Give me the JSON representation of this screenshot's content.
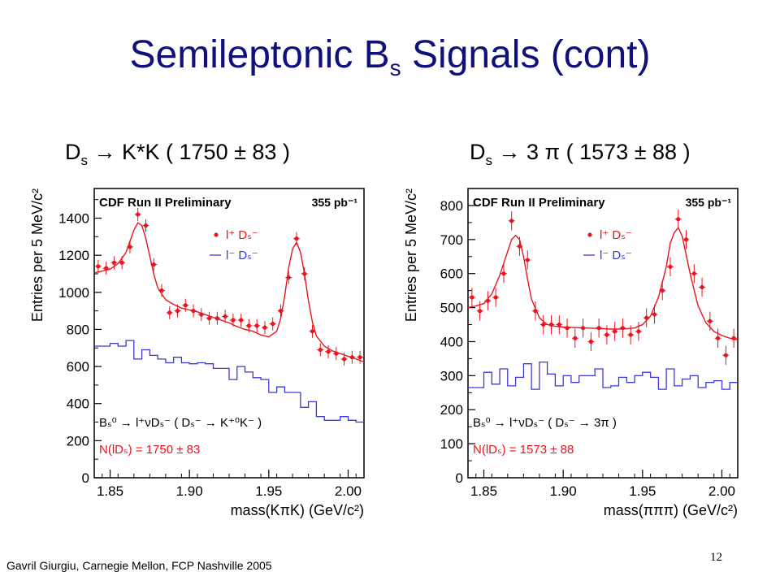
{
  "slide": {
    "title_main": "Semileptonic B",
    "title_sub": "s",
    "title_rest": " Signals (cont)",
    "footer": "Gavril Giurgiu, Carnegie Mellon, FCP Nashville 2005",
    "page_number": "12"
  },
  "panels": [
    {
      "head_main": "D",
      "head_sub": "s",
      "head_rest": " → K*K ( 1750 ± 83 )"
    },
    {
      "head_main": "D",
      "head_sub": "s",
      "head_rest": " → 3 π ( 1573 ± 88 )"
    }
  ],
  "chart_data": [
    {
      "type": "scatter",
      "header": "CDF Run II Preliminary",
      "lumi": "355 pb⁻¹",
      "xlabel": "mass(KπK) (GeV/c²)",
      "ylabel": "Entries per 5 MeV/c²",
      "xlim": [
        1.84,
        2.01
      ],
      "ylim": [
        0,
        1560
      ],
      "xticks": [
        "1.85",
        "1.90",
        "1.95",
        "2.00"
      ],
      "yticks": [
        "0",
        "200",
        "400",
        "600",
        "800",
        "1000",
        "1200",
        "1400"
      ],
      "legend": [
        "l⁺ Dₛ⁻",
        "l⁻ Dₛ⁻"
      ],
      "decay": "Bₛ⁰ → l⁺νDₛ⁻ ( Dₛ⁻ → K⁺⁰K⁻ )",
      "yield_label": "N(lDₛ) = 1750 ± 83",
      "series": [
        {
          "name": "l⁺ Dₛ⁻",
          "color": "#e8141e",
          "x": [
            1.8425,
            1.8475,
            1.8525,
            1.8575,
            1.8625,
            1.8675,
            1.8725,
            1.8775,
            1.8825,
            1.8875,
            1.8925,
            1.8975,
            1.9025,
            1.9075,
            1.9125,
            1.9175,
            1.9225,
            1.9275,
            1.9325,
            1.9375,
            1.9425,
            1.9475,
            1.9525,
            1.9575,
            1.9625,
            1.9675,
            1.9725,
            1.9775,
            1.9825,
            1.9875,
            1.9925,
            1.9975,
            2.0025,
            2.0075
          ],
          "y": [
            1140,
            1130,
            1160,
            1160,
            1245,
            1420,
            1360,
            1150,
            1010,
            890,
            900,
            930,
            900,
            880,
            860,
            860,
            870,
            850,
            850,
            820,
            820,
            810,
            830,
            900,
            1080,
            1290,
            1100,
            790,
            690,
            680,
            670,
            640,
            650,
            650
          ],
          "err": [
            35,
            35,
            35,
            35,
            35,
            35,
            35,
            35,
            35,
            35,
            35,
            35,
            35,
            35,
            35,
            35,
            35,
            35,
            35,
            35,
            35,
            35,
            35,
            35,
            35,
            35,
            35,
            35,
            35,
            35,
            35,
            35,
            35,
            35
          ]
        },
        {
          "name": "l⁻ Dₛ⁻",
          "color": "#3a3ad8",
          "step": [
            710,
            710,
            725,
            710,
            740,
            640,
            690,
            660,
            640,
            620,
            650,
            620,
            615,
            620,
            615,
            590,
            590,
            530,
            600,
            570,
            540,
            530,
            460,
            490,
            460,
            460,
            380,
            410,
            330,
            310,
            310,
            330,
            310,
            300
          ]
        },
        {
          "name": "fit",
          "color": "#e8141e",
          "x": [
            1.84,
            1.845,
            1.85,
            1.855,
            1.86,
            1.8625,
            1.865,
            1.8675,
            1.87,
            1.8725,
            1.875,
            1.8775,
            1.88,
            1.885,
            1.89,
            1.895,
            1.9,
            1.905,
            1.91,
            1.915,
            1.92,
            1.925,
            1.93,
            1.935,
            1.94,
            1.945,
            1.95,
            1.955,
            1.9575,
            1.96,
            1.9625,
            1.965,
            1.9675,
            1.97,
            1.9725,
            1.975,
            1.9775,
            1.98,
            1.985,
            1.99,
            1.995,
            2.0,
            2.005,
            2.01
          ],
          "y": [
            1105,
            1115,
            1125,
            1155,
            1215,
            1275,
            1335,
            1375,
            1360,
            1290,
            1195,
            1100,
            1025,
            960,
            935,
            915,
            905,
            895,
            880,
            865,
            850,
            835,
            815,
            800,
            790,
            770,
            760,
            790,
            860,
            980,
            1130,
            1235,
            1270,
            1215,
            1100,
            955,
            840,
            765,
            710,
            685,
            670,
            655,
            640,
            625
          ]
        }
      ]
    },
    {
      "type": "scatter",
      "header": "CDF Run II Preliminary",
      "lumi": "355 pb⁻¹",
      "xlabel": "mass(πππ) (GeV/c²)",
      "ylabel": "Entries per 5 MeV/c²",
      "xlim": [
        1.84,
        2.01
      ],
      "ylim": [
        0,
        850
      ],
      "xticks": [
        "1.85",
        "1.90",
        "1.95",
        "2.00"
      ],
      "yticks": [
        "0",
        "100",
        "200",
        "300",
        "400",
        "500",
        "600",
        "700",
        "800"
      ],
      "legend": [
        "l⁺ Dₛ⁻",
        "l⁻ Dₛ⁻"
      ],
      "decay": "Bₛ⁰ → l⁺νDₛ⁻ ( Dₛ⁻ → 3π )",
      "yield_label": "N(lDₛ) = 1573 ± 88",
      "series": [
        {
          "name": "l⁺ Dₛ⁻",
          "color": "#e8141e",
          "x": [
            1.8425,
            1.8475,
            1.8525,
            1.8575,
            1.8625,
            1.8675,
            1.8725,
            1.8775,
            1.8825,
            1.8875,
            1.8925,
            1.8975,
            1.9025,
            1.9075,
            1.9125,
            1.9175,
            1.9225,
            1.9275,
            1.9325,
            1.9375,
            1.9425,
            1.9475,
            1.9525,
            1.9575,
            1.9625,
            1.9675,
            1.9725,
            1.9775,
            1.9825,
            1.9875,
            1.9925,
            1.9975,
            2.0025,
            2.0075
          ],
          "y": [
            530,
            490,
            520,
            530,
            600,
            755,
            680,
            640,
            490,
            450,
            450,
            450,
            440,
            410,
            440,
            400,
            440,
            420,
            430,
            440,
            420,
            430,
            470,
            480,
            550,
            620,
            760,
            700,
            600,
            560,
            460,
            410,
            360,
            410
          ],
          "err": [
            28,
            28,
            28,
            28,
            28,
            28,
            28,
            28,
            28,
            28,
            28,
            28,
            28,
            28,
            28,
            28,
            28,
            28,
            28,
            28,
            28,
            28,
            28,
            28,
            28,
            28,
            28,
            28,
            28,
            28,
            28,
            28,
            28,
            28
          ]
        },
        {
          "name": "l⁻ Dₛ⁻",
          "color": "#3a3ad8",
          "step": [
            265,
            265,
            310,
            275,
            320,
            270,
            295,
            335,
            260,
            340,
            305,
            270,
            300,
            280,
            300,
            300,
            320,
            265,
            270,
            295,
            280,
            300,
            310,
            295,
            260,
            320,
            270,
            290,
            300,
            265,
            280,
            285,
            260,
            280
          ]
        },
        {
          "name": "fit",
          "color": "#e8141e",
          "x": [
            1.84,
            1.845,
            1.85,
            1.855,
            1.86,
            1.865,
            1.8675,
            1.87,
            1.8725,
            1.875,
            1.8775,
            1.88,
            1.885,
            1.89,
            1.895,
            1.9,
            1.905,
            1.91,
            1.915,
            1.92,
            1.925,
            1.93,
            1.935,
            1.94,
            1.945,
            1.95,
            1.955,
            1.96,
            1.965,
            1.9675,
            1.97,
            1.9725,
            1.975,
            1.98,
            1.985,
            1.99,
            1.995,
            2.0,
            2.005,
            2.01
          ],
          "y": [
            500,
            505,
            512,
            540,
            595,
            665,
            700,
            712,
            700,
            650,
            585,
            525,
            470,
            450,
            445,
            443,
            442,
            441,
            440,
            439,
            438,
            437,
            437,
            438,
            440,
            450,
            475,
            530,
            620,
            690,
            720,
            735,
            710,
            600,
            505,
            455,
            430,
            418,
            410,
            405
          ]
        }
      ]
    }
  ]
}
